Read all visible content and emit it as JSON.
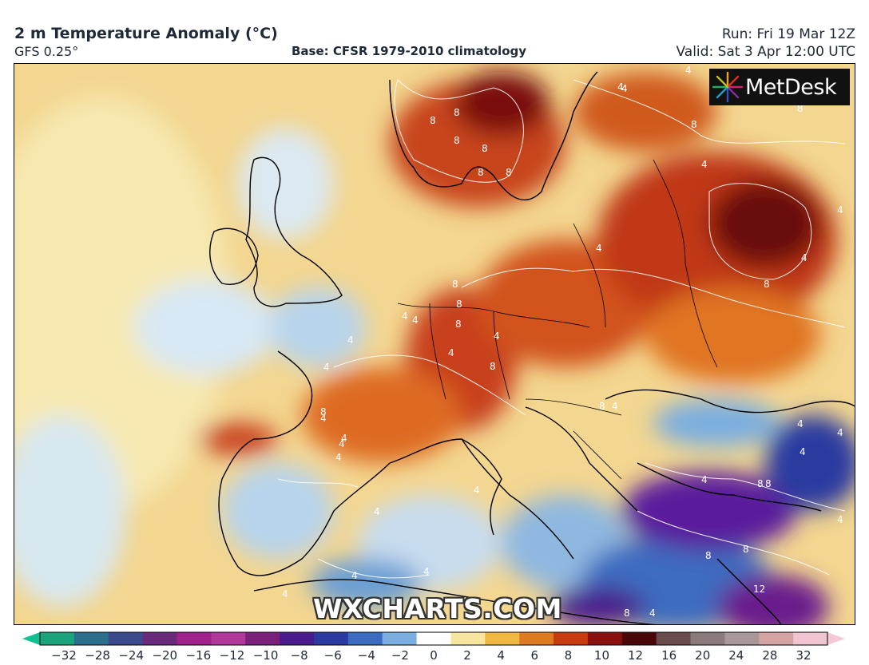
{
  "header": {
    "title": "2 m Temperature Anomaly (°C)",
    "model": "GFS 0.25°",
    "base": "Base: CFSR 1979-2010 climatology",
    "run": "Run: Fri 19 Mar 12Z",
    "valid": "Valid: Sat 3 Apr 12:00 UTC"
  },
  "logo": {
    "text": "MetDesk",
    "icon": "metdesk-starburst-icon"
  },
  "watermark": "WXCHARTS.COM",
  "colorbar": {
    "labels": [
      "−32",
      "−28",
      "−24",
      "−20",
      "−16",
      "−12",
      "−10",
      "−8",
      "−6",
      "−4",
      "−2",
      "0",
      "2",
      "4",
      "6",
      "8",
      "10",
      "12",
      "16",
      "20",
      "24",
      "28",
      "32"
    ],
    "colors": [
      "#1aa37c",
      "#2c6f8c",
      "#3a4a8c",
      "#6a2a7c",
      "#a0208c",
      "#b1389a",
      "#7a1f7a",
      "#4a1a8c",
      "#2a3aa0",
      "#3c6cc0",
      "#7aaee0",
      "#ffffff",
      "#f6e6a0",
      "#f0b840",
      "#e07a20",
      "#c83a10",
      "#8a1010",
      "#4a0808",
      "#6a4a4a",
      "#8a7a7a",
      "#a89898",
      "#d4a4a4",
      "#f0c4d0"
    ],
    "arrow_low_color": "#10c090",
    "arrow_high_color": "#f4c8d8"
  },
  "map": {
    "contour_labels": [
      "8",
      "8",
      "8",
      "8",
      "8",
      "8",
      "4",
      "4",
      "4",
      "8",
      "8",
      "4",
      "4",
      "4",
      "4",
      "8",
      "4",
      "8",
      "8",
      "8",
      "4",
      "4",
      "4",
      "4",
      "4",
      "8",
      "4",
      "8",
      "4",
      "4",
      "8",
      "4",
      "4",
      "4",
      "4",
      "4",
      "4",
      "4",
      "8",
      "4",
      "8",
      "8",
      "4",
      "4",
      "12",
      "8",
      "4",
      "8",
      "4",
      "4"
    ]
  }
}
